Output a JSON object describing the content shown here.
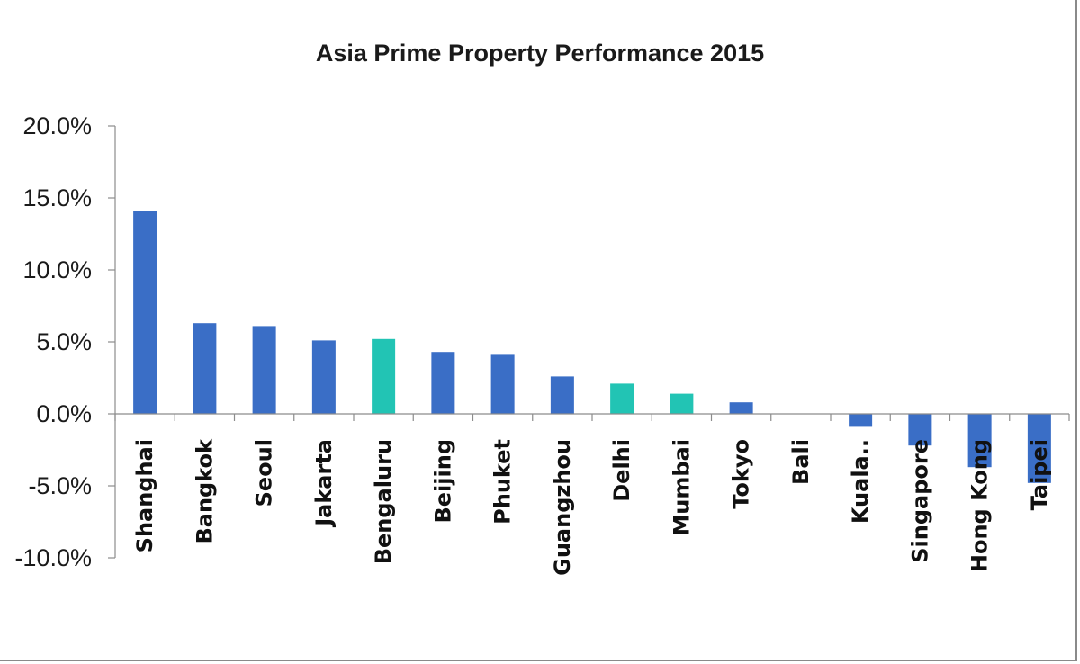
{
  "chart_data": {
    "type": "bar",
    "title": "Asia Prime Property Performance 2015",
    "xlabel": "",
    "ylabel": "",
    "categories": [
      "Shanghai",
      "Bangkok",
      "Seoul",
      "Jakarta",
      "Bengaluru",
      "Beijing",
      "Phuket",
      "Guangzhou",
      "Delhi",
      "Mumbai",
      "Tokyo",
      "Bali",
      "Kuala..",
      "Singapore",
      "Hong Kong",
      "Taipei"
    ],
    "values": [
      14.1,
      6.3,
      6.1,
      5.1,
      5.2,
      4.3,
      4.1,
      2.6,
      2.1,
      1.4,
      0.8,
      0.0,
      -0.9,
      -2.2,
      -3.7,
      -4.8
    ],
    "bar_colors": [
      "#3a6ec6",
      "#3a6ec6",
      "#3a6ec6",
      "#3a6ec6",
      "#22c4b4",
      "#3a6ec6",
      "#3a6ec6",
      "#3a6ec6",
      "#22c4b4",
      "#22c4b4",
      "#3a6ec6",
      "#3a6ec6",
      "#3a6ec6",
      "#3a6ec6",
      "#3a6ec6",
      "#3a6ec6"
    ],
    "ylim": [
      -10,
      20
    ],
    "yticks": [
      20,
      15,
      10,
      5,
      0,
      -5,
      -10
    ],
    "ytick_labels": [
      "20.0%",
      "15.0%",
      "10.0%",
      "5.0%",
      "0.0%",
      "-5.0%",
      "-10.0%"
    ],
    "grid": false,
    "legend": "none",
    "colors": {
      "primary": "#3a6ec6",
      "highlight": "#22c4b4"
    }
  }
}
